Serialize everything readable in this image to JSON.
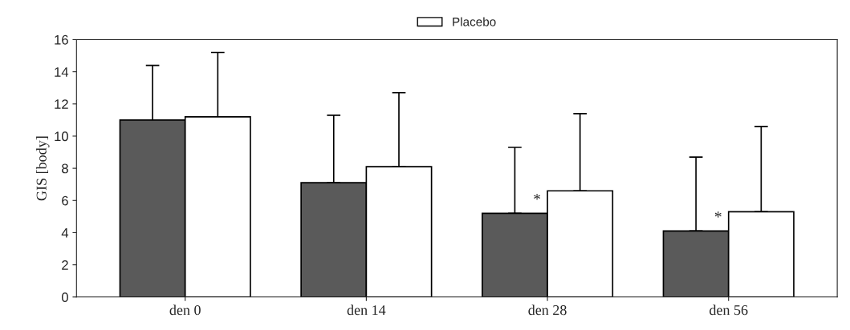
{
  "chart_data": {
    "type": "bar",
    "ylabel": "GIS [body]",
    "categories": [
      "den 0",
      "den 14",
      "den 28",
      "den 56"
    ],
    "series": [
      {
        "color": "#5a5a5a",
        "values": [
          11.0,
          7.1,
          5.2,
          4.1
        ],
        "errors": [
          [
            11.0,
            14.4
          ],
          [
            7.1,
            11.3
          ],
          [
            5.2,
            9.3
          ],
          [
            4.1,
            8.7
          ]
        ]
      },
      {
        "name": "Placebo",
        "color": "#ffffff",
        "values": [
          11.2,
          8.1,
          6.6,
          5.3
        ],
        "errors": [
          [
            11.2,
            15.2
          ],
          [
            8.1,
            12.7
          ],
          [
            6.6,
            11.4
          ],
          [
            5.3,
            10.6
          ]
        ]
      }
    ],
    "ylim": [
      0,
      16
    ],
    "yticks": [
      0,
      2,
      4,
      6,
      8,
      10,
      12,
      14,
      16
    ],
    "grid": false,
    "legend": "top",
    "annotations": [
      {
        "text": "*",
        "x": "den 28",
        "y": 6.0
      },
      {
        "text": "*",
        "x": "den 56",
        "y": 4.9
      }
    ]
  }
}
